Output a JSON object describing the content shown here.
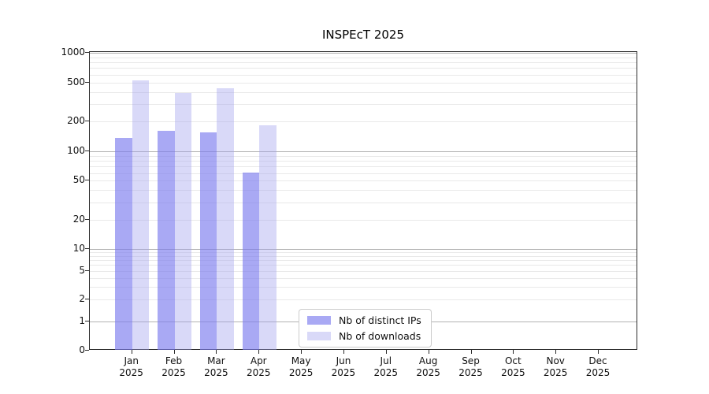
{
  "chart_data": {
    "type": "bar",
    "title": "INSPEcT 2025",
    "categories": [
      "Jan",
      "Feb",
      "Mar",
      "Apr",
      "May",
      "Jun",
      "Jul",
      "Aug",
      "Sep",
      "Oct",
      "Nov",
      "Dec"
    ],
    "year": "2025",
    "series": [
      {
        "name": "Nb of distinct IPs",
        "color": "rgba(123,123,238,0.65)",
        "values": [
          137,
          160,
          157,
          61,
          0,
          0,
          0,
          0,
          0,
          0,
          0,
          0
        ]
      },
      {
        "name": "Nb of downloads",
        "color": "rgba(160,160,238,0.40)",
        "values": [
          525,
          390,
          440,
          185,
          0,
          0,
          0,
          0,
          0,
          0,
          0,
          0
        ]
      }
    ],
    "y_axis": {
      "scale": "log-with-zero",
      "ticks": [
        1000,
        500,
        200,
        100,
        50,
        20,
        10,
        5,
        2,
        1,
        0
      ],
      "ylim": [
        0,
        1000
      ]
    },
    "x_axis": {
      "label_format": "month-over-year"
    },
    "legend": {
      "position": "lower center"
    },
    "grid": true,
    "colors": {
      "major_grid": "#b2b2b2",
      "minor_grid": "#e9e9e9",
      "spine": "#2b2b2b",
      "background": "#ffffff"
    }
  }
}
